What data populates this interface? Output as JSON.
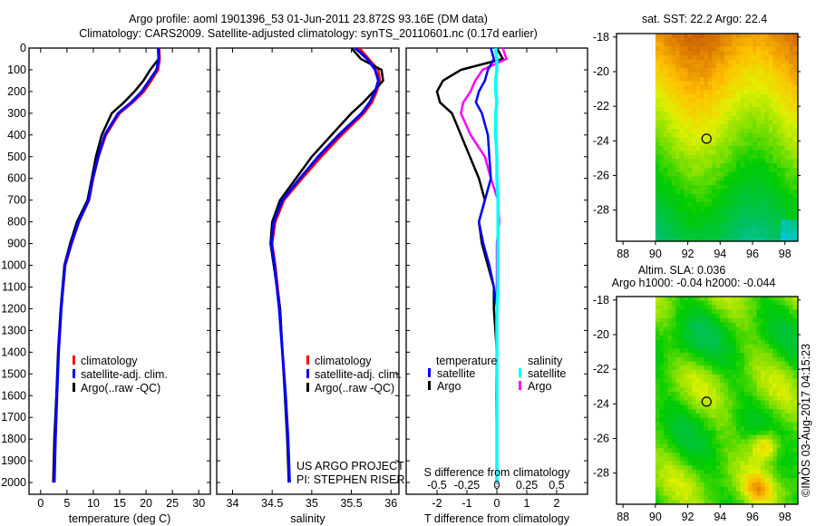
{
  "title_line1": "Argo profile: aoml 1901396_53 01-Jun-2011 23.872S 93.16E (DM data)",
  "title_line2": "Climatology: CARS2009. Satellite-adjusted climatology: synTS_20110601.nc (0.17d earlier)",
  "credit": "©IMOS 03-Aug-2017 04:15:23",
  "colors": {
    "climatology": "#ff0000",
    "satellite": "#0000ff",
    "argo": "#000000",
    "sal_satellite": "#00ffff",
    "sal_argo": "#ff00ff"
  },
  "chart_data": [
    {
      "type": "line",
      "xlabel": "temperature (deg C)",
      "ylabel": "",
      "xlim": [
        -2.2,
        32.2
      ],
      "ylim": [
        2054,
        0
      ],
      "xticks": [
        "0",
        "5",
        "10",
        "15",
        "20",
        "25",
        "30"
      ],
      "xtick_values": [
        0,
        5,
        10,
        15,
        20,
        25,
        30
      ],
      "yticks": [
        "0",
        "100",
        "200",
        "300",
        "400",
        "500",
        "600",
        "700",
        "800",
        "900",
        "1000",
        "1100",
        "1200",
        "1300",
        "1400",
        "1500",
        "1600",
        "1700",
        "1800",
        "1900",
        "2000"
      ],
      "depth": [
        0,
        50,
        100,
        150,
        200,
        250,
        300,
        400,
        500,
        600,
        700,
        800,
        900,
        1000,
        1200,
        1400,
        1600,
        1800,
        2000
      ],
      "legend": [
        "climatology",
        "satellite-adj. clim.",
        "Argo(..raw -QC)"
      ],
      "series": [
        {
          "name": "climatology",
          "values": [
            22.5,
            22.6,
            22.3,
            21.0,
            19.6,
            17.5,
            15.0,
            12.4,
            11.0,
            10.0,
            9.2,
            7.3,
            5.9,
            4.7,
            3.9,
            3.4,
            3.0,
            2.7,
            2.4
          ]
        },
        {
          "name": "satellite-adj. clim.",
          "values": [
            22.3,
            22.4,
            22.0,
            20.6,
            19.2,
            17.2,
            14.7,
            12.2,
            10.9,
            9.9,
            9.1,
            7.2,
            5.8,
            4.6,
            3.9,
            3.4,
            3.1,
            2.8,
            2.6
          ]
        },
        {
          "name": "Argo(..raw -QC)",
          "values": [
            22.4,
            22.4,
            20.8,
            19.5,
            17.8,
            15.8,
            13.5,
            11.6,
            10.5,
            9.7,
            8.9,
            6.9,
            5.6,
            4.5,
            3.8,
            3.3,
            3.0,
            2.6,
            2.4
          ]
        }
      ]
    },
    {
      "type": "line",
      "xlabel": "salinity",
      "xlim": [
        33.8,
        36.1
      ],
      "ylim": [
        2054,
        0
      ],
      "xticks": [
        "34",
        "34.5",
        "35",
        "35.5",
        "36"
      ],
      "xtick_values": [
        34,
        34.5,
        35,
        35.5,
        36
      ],
      "depth": [
        0,
        50,
        100,
        150,
        200,
        250,
        300,
        400,
        500,
        600,
        700,
        800,
        900,
        1000,
        1200,
        1400,
        1600,
        1800,
        2000
      ],
      "legend": [
        "climatology",
        "satellite-adj. clim.",
        "Argo(..raw -QC)"
      ],
      "annotation": [
        "US ARGO PROJECT",
        "PI: STEPHEN RISER"
      ],
      "series": [
        {
          "name": "climatology",
          "values": [
            35.6,
            35.72,
            35.84,
            35.86,
            35.82,
            35.76,
            35.66,
            35.38,
            35.12,
            34.88,
            34.65,
            34.54,
            34.5,
            34.54,
            34.6,
            34.63,
            34.67,
            34.7,
            34.72
          ]
        },
        {
          "name": "satellite-adj. clim.",
          "values": [
            35.55,
            35.7,
            35.8,
            35.84,
            35.8,
            35.73,
            35.63,
            35.34,
            35.08,
            34.85,
            34.63,
            34.52,
            34.49,
            34.53,
            34.59,
            34.63,
            34.67,
            34.7,
            34.72
          ]
        },
        {
          "name": "Argo(..raw -QC)",
          "values": [
            35.5,
            35.62,
            35.88,
            35.9,
            35.78,
            35.65,
            35.5,
            35.25,
            35.0,
            34.8,
            34.6,
            34.5,
            34.48,
            34.52,
            34.6,
            34.63,
            34.66,
            34.69,
            34.71
          ]
        }
      ]
    },
    {
      "type": "line",
      "xlabel": "T difference from climatology",
      "xlabel2": "S difference from climatology",
      "xlim": [
        -3.03,
        3.03
      ],
      "ylim": [
        2054,
        0
      ],
      "xticks": [
        "-2",
        "-1",
        "0",
        "1",
        "2"
      ],
      "xtick_values": [
        -2,
        -1,
        0,
        1,
        2
      ],
      "xticks2": [
        "-0.5",
        "-0.25",
        "0",
        "0.25",
        "0.5"
      ],
      "xtick2_values": [
        -0.5,
        -0.25,
        0,
        0.25,
        0.5
      ],
      "legend_titles": [
        "temperature",
        "salinity"
      ],
      "legend": [
        "satellite",
        "Argo",
        "satellite",
        "Argo"
      ],
      "depth": [
        0,
        50,
        100,
        150,
        200,
        250,
        300,
        400,
        500,
        600,
        700,
        800,
        900,
        1000,
        1100,
        1200,
        1400,
        1600,
        1800,
        2000
      ],
      "series": [
        {
          "name": "temperature satellite",
          "units": "degC",
          "values": [
            -0.2,
            -0.1,
            -0.3,
            -0.4,
            -0.6,
            -0.7,
            -0.5,
            -0.3,
            -0.25,
            -0.2,
            -0.4,
            -0.6,
            -0.45,
            -0.25,
            -0.1,
            0,
            0,
            0,
            0,
            0
          ]
        },
        {
          "name": "temperature Argo",
          "units": "degC",
          "values": [
            0,
            0.2,
            -1.2,
            -1.8,
            -2.0,
            -1.9,
            -1.5,
            -1.2,
            -0.9,
            -0.6,
            -0.4,
            -0.6,
            -0.5,
            -0.3,
            -0.1,
            -0.1,
            0,
            -0.02,
            0,
            0
          ]
        },
        {
          "name": "salinity satellite",
          "units": "psu",
          "values": [
            -0.01,
            0,
            0,
            -0.01,
            -0.01,
            0,
            -0.01,
            -0.01,
            0,
            0,
            0.01,
            0.01,
            0.01,
            0.01,
            0.01,
            0,
            0,
            0,
            0,
            0
          ]
        },
        {
          "name": "salinity Argo",
          "units": "psu",
          "values": [
            0.05,
            0.08,
            -0.12,
            -0.18,
            -0.22,
            -0.28,
            -0.3,
            -0.22,
            -0.1,
            -0.05,
            0.01,
            0.02,
            0,
            0,
            0,
            0,
            0,
            0,
            0,
            0
          ]
        }
      ]
    },
    {
      "type": "heatmap",
      "title": "sat. SST: 22.2 Argo: 22.4",
      "xlim": [
        87.6,
        98.8
      ],
      "ylim": [
        -29.8,
        -17.8
      ],
      "xticks": [
        "88",
        "90",
        "92",
        "94",
        "96",
        "98"
      ],
      "xtick_values": [
        88,
        90,
        92,
        94,
        96,
        98
      ],
      "yticks": [
        "-18",
        "-20",
        "-22",
        "-24",
        "-26",
        "-28"
      ],
      "ytick_values": [
        -18,
        -20,
        -22,
        -24,
        -26,
        -28
      ],
      "data_lon_start": 90,
      "argo_position": [
        93.16,
        -23.872
      ]
    },
    {
      "type": "heatmap",
      "title": "Altim. SLA: 0.036",
      "subtitle": "Argo h1000: -0.04 h2000: -0.044",
      "xlim": [
        87.6,
        98.8
      ],
      "ylim": [
        -29.8,
        -17.8
      ],
      "xticks": [
        "88",
        "90",
        "92",
        "94",
        "96",
        "98"
      ],
      "xtick_values": [
        88,
        90,
        92,
        94,
        96,
        98
      ],
      "yticks": [
        "-18",
        "-20",
        "-22",
        "-24",
        "-26",
        "-28"
      ],
      "ytick_values": [
        -18,
        -20,
        -22,
        -24,
        -26,
        -28
      ],
      "data_lon_start": 90,
      "argo_position": [
        93.16,
        -23.872
      ]
    }
  ]
}
